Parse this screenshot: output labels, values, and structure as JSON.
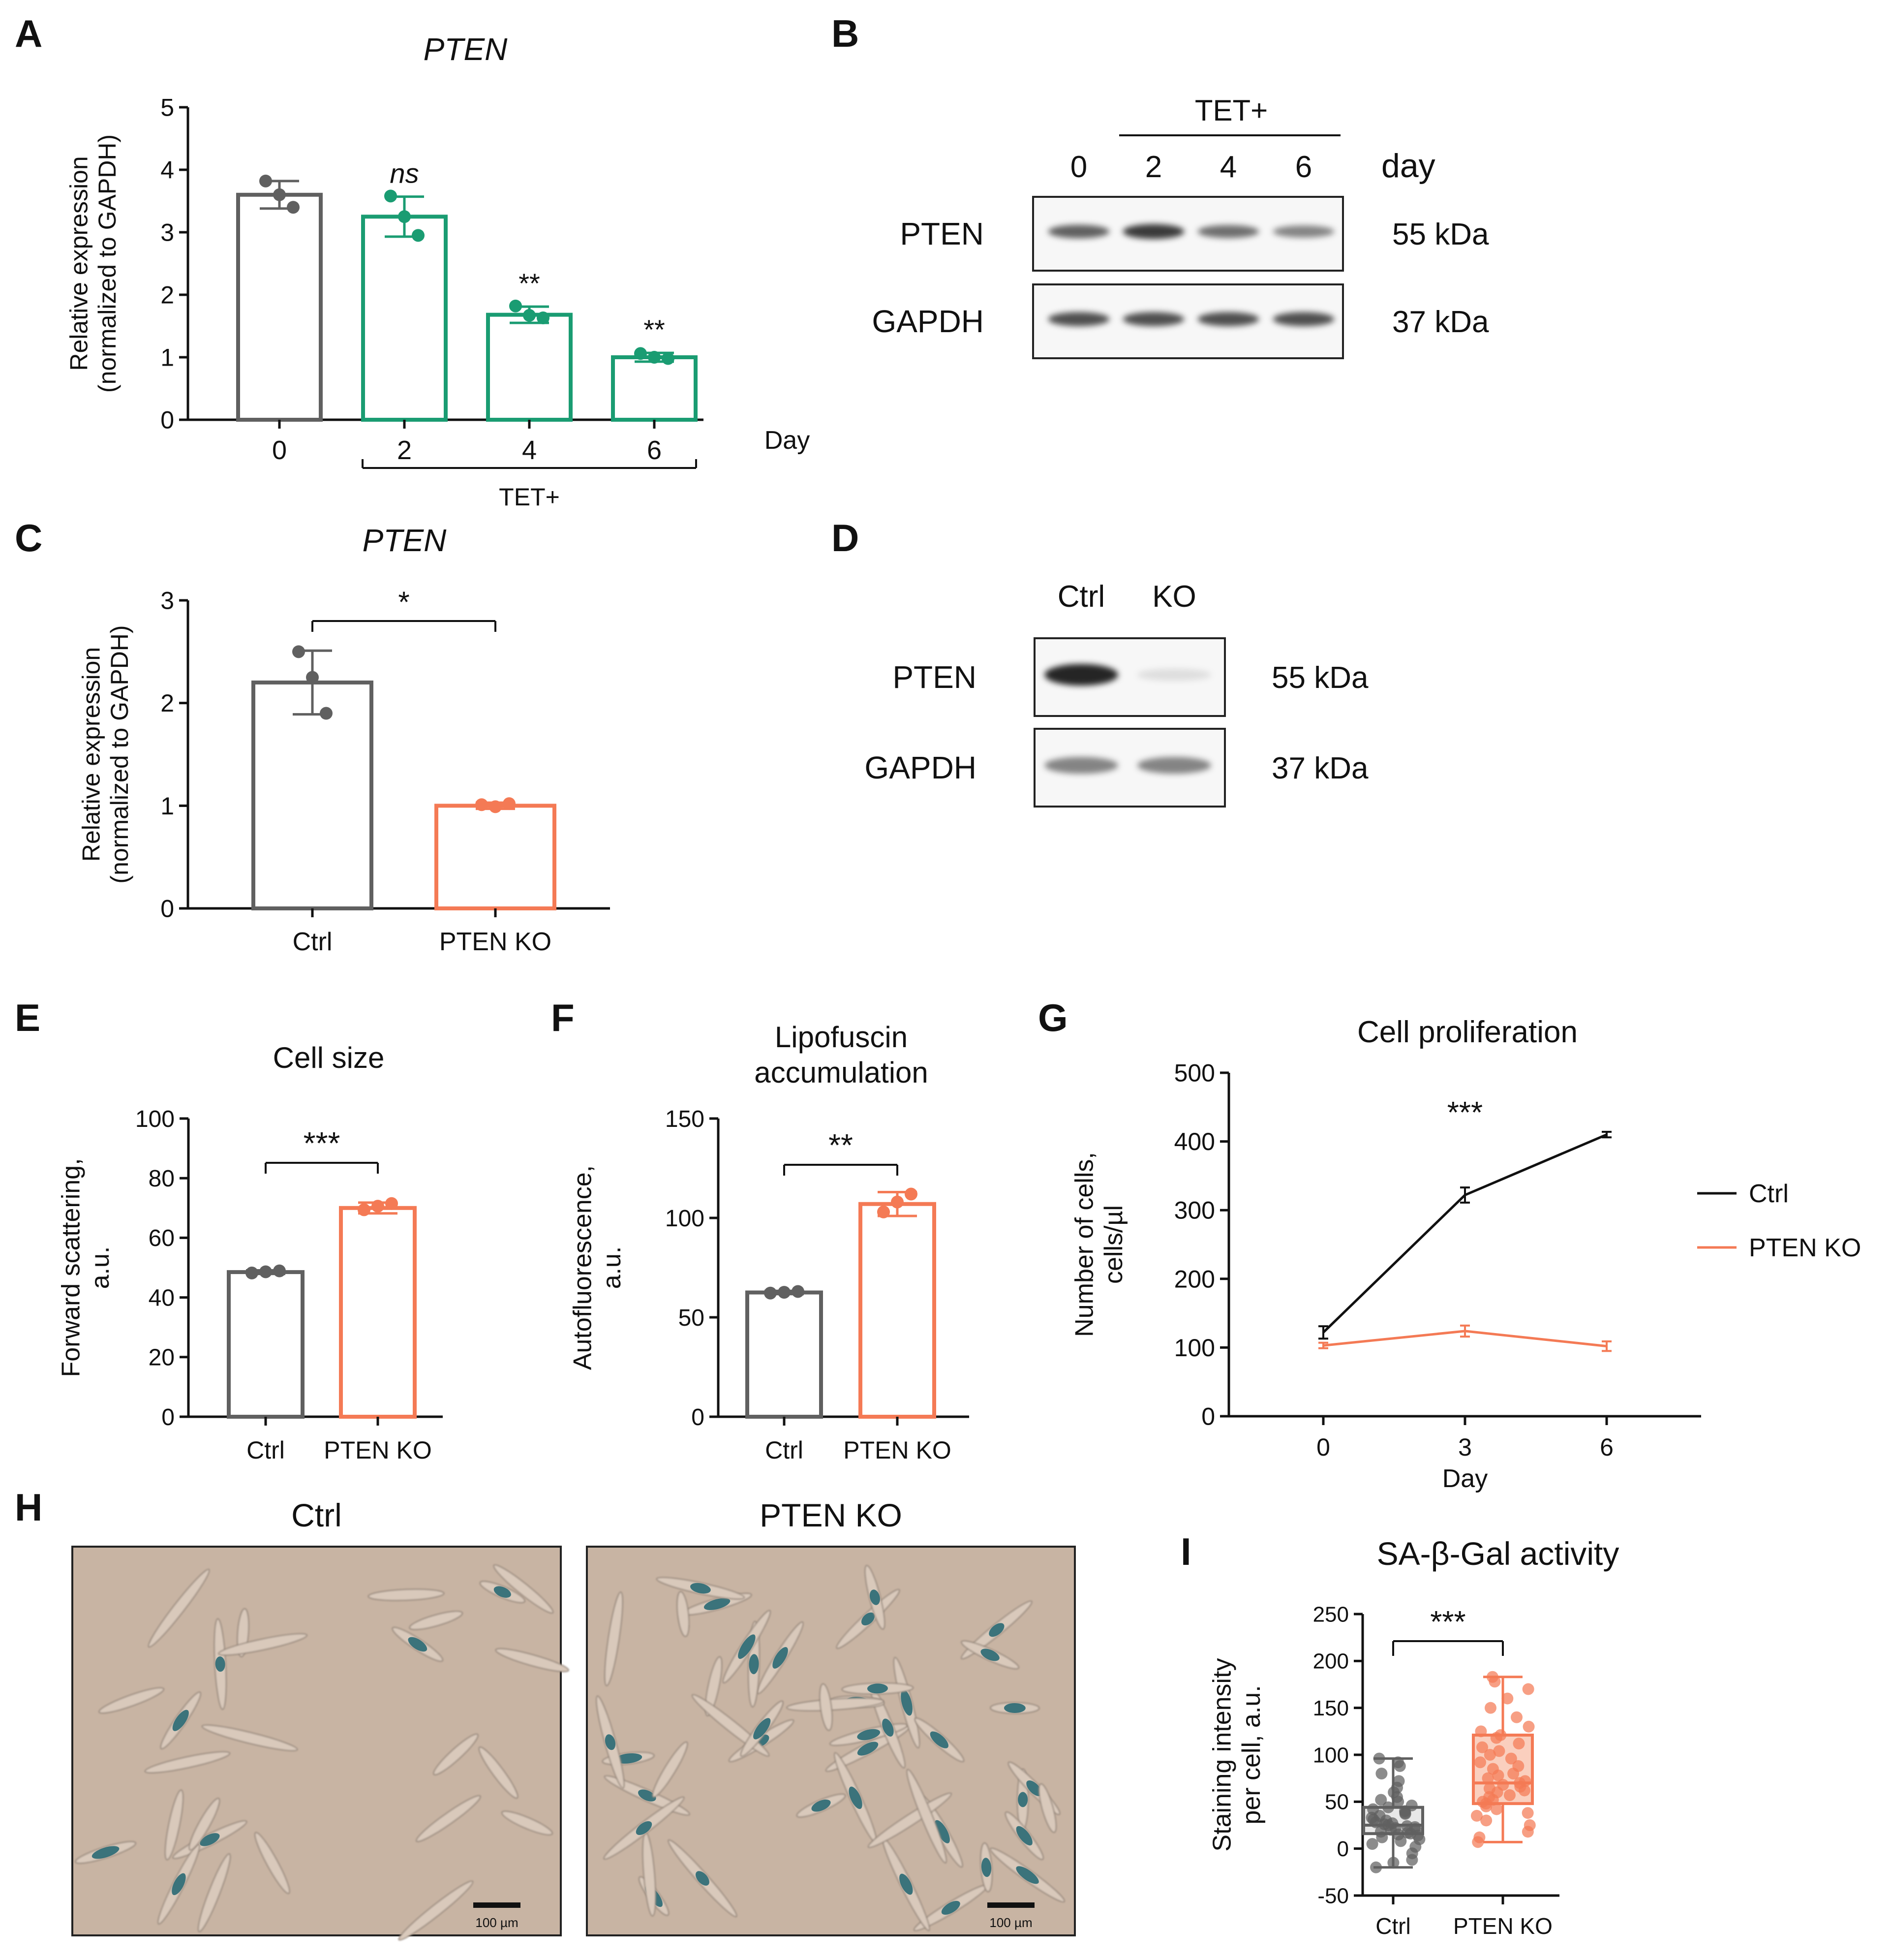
{
  "colors": {
    "ctrl": "#606060",
    "tet": "#1a9c72",
    "ko": "#f47a55",
    "micrograph_bg": "#c8b4a3",
    "stain": "#1e6470",
    "box_fill": "#f9c7b3"
  },
  "panel_letters": [
    "A",
    "B",
    "C",
    "D",
    "E",
    "F",
    "G",
    "H",
    "I"
  ],
  "chart_data": [
    {
      "panel": "A",
      "type": "bar",
      "title": "PTEN",
      "ylabel_lines": [
        "Relative expression",
        "(normalized to GAPDH)"
      ],
      "xlabel": "Day",
      "categories": [
        "0",
        "2",
        "4",
        "6"
      ],
      "values": [
        3.6,
        3.25,
        1.68,
        1.0
      ],
      "errors": [
        0.22,
        0.32,
        0.13,
        0.07
      ],
      "points": [
        [
          3.82,
          3.6,
          3.4
        ],
        [
          3.58,
          3.25,
          2.95
        ],
        [
          1.82,
          1.67,
          1.63
        ],
        [
          1.06,
          1.0,
          0.98
        ]
      ],
      "colors": [
        "ctrl",
        "tet",
        "tet",
        "tet"
      ],
      "significance": [
        "",
        "ns",
        "**",
        "**"
      ],
      "group_bracket": {
        "label": "TET+",
        "from": 1,
        "to": 3
      },
      "ylim": [
        0,
        5
      ],
      "yticks": [
        0,
        1,
        2,
        3,
        4,
        5
      ]
    },
    {
      "panel": "C",
      "type": "bar",
      "title": "PTEN",
      "ylabel_lines": [
        "Relative expression",
        "(normalized to GAPDH)"
      ],
      "categories": [
        "Ctrl",
        "PTEN KO"
      ],
      "values": [
        2.2,
        1.0
      ],
      "errors": [
        0.31,
        0.03
      ],
      "points": [
        [
          2.5,
          2.25,
          1.9
        ],
        [
          1.01,
          0.99,
          1.02
        ]
      ],
      "colors": [
        "ctrl",
        "ko"
      ],
      "comparison": "*",
      "ylim": [
        0,
        3
      ],
      "yticks": [
        0,
        1,
        2,
        3
      ]
    },
    {
      "panel": "E",
      "type": "bar",
      "title": "Cell size",
      "ylabel_lines": [
        "Forward scattering,",
        "a.u."
      ],
      "categories": [
        "Ctrl",
        "PTEN KO"
      ],
      "values": [
        48.5,
        70
      ],
      "errors": [
        0.6,
        1.8
      ],
      "points": [
        [
          48.2,
          48.6,
          48.9
        ],
        [
          69.4,
          70.6,
          71.5
        ]
      ],
      "colors": [
        "ctrl",
        "ko"
      ],
      "comparison": "***",
      "ylim": [
        0,
        100
      ],
      "yticks": [
        0,
        20,
        40,
        60,
        80,
        100
      ]
    },
    {
      "panel": "F",
      "type": "bar",
      "title_lines": [
        "Lipofuscin",
        "accumulation"
      ],
      "ylabel_lines": [
        "Autofluorescence,",
        "a.u."
      ],
      "categories": [
        "Ctrl",
        "PTEN KO"
      ],
      "values": [
        62.5,
        107
      ],
      "errors": [
        0.8,
        6
      ],
      "points": [
        [
          62.2,
          62.6,
          63.0
        ],
        [
          103,
          108,
          112
        ]
      ],
      "colors": [
        "ctrl",
        "ko"
      ],
      "comparison": "**",
      "ylim": [
        0,
        150
      ],
      "yticks": [
        0,
        50,
        100,
        150
      ]
    },
    {
      "panel": "G",
      "type": "line",
      "title": "Cell proliferation",
      "ylabel_lines": [
        "Number of cells,",
        "cells/µl"
      ],
      "xlabel": "Day",
      "x": [
        0,
        3,
        6
      ],
      "xlim": [
        -2,
        8
      ],
      "xticks": [
        0,
        3,
        6
      ],
      "ylim": [
        0,
        500
      ],
      "yticks": [
        0,
        100,
        200,
        300,
        400,
        500
      ],
      "significance": "***",
      "legend_position": "right",
      "series": [
        {
          "name": "Ctrl",
          "values": [
            122,
            322,
            410
          ],
          "errors": [
            9,
            11,
            4
          ],
          "color": "#111111"
        },
        {
          "name": "PTEN KO",
          "values": [
            103,
            124,
            102
          ],
          "errors": [
            4,
            8,
            7
          ],
          "color": "#f47a55"
        }
      ]
    },
    {
      "panel": "I",
      "type": "box",
      "title": "SA-β-Gal activity",
      "ylabel_lines": [
        "Staining intensity",
        "per cell, a.u."
      ],
      "categories": [
        "Ctrl",
        "PTEN KO"
      ],
      "ylim": [
        -50,
        250
      ],
      "yticks": [
        -50,
        0,
        50,
        100,
        150,
        200,
        250
      ],
      "comparison": "***",
      "boxes": [
        {
          "min": -20,
          "q1": 16,
          "median": 25,
          "q3": 44,
          "max": 96,
          "color": "ctrl",
          "points": [
            -20,
            -15,
            -12,
            -5,
            2,
            5,
            8,
            10,
            12,
            14,
            15,
            16,
            17,
            18,
            20,
            21,
            22,
            23,
            24,
            25,
            26,
            27,
            28,
            30,
            31,
            33,
            35,
            37,
            38,
            40,
            42,
            44,
            46,
            50,
            52,
            55,
            60,
            65,
            72,
            80,
            88,
            92,
            96
          ]
        },
        {
          "min": 7,
          "q1": 48,
          "median": 70,
          "q3": 121,
          "max": 183,
          "color": "ko",
          "points": [
            7,
            12,
            18,
            25,
            30,
            35,
            38,
            42,
            45,
            48,
            50,
            52,
            55,
            57,
            60,
            62,
            64,
            66,
            68,
            70,
            72,
            75,
            78,
            80,
            85,
            88,
            92,
            96,
            100,
            104,
            108,
            112,
            118,
            121,
            125,
            130,
            140,
            150,
            160,
            170,
            178,
            183
          ]
        }
      ]
    }
  ],
  "western_B": {
    "group_label": "TET+",
    "lanes": [
      "0",
      "2",
      "4",
      "6"
    ],
    "unit": "day",
    "rows": [
      {
        "protein": "PTEN",
        "size": "55 kDa",
        "intensities": [
          0.72,
          0.9,
          0.65,
          0.55
        ]
      },
      {
        "protein": "GAPDH",
        "size": "37 kDa",
        "intensities": [
          0.8,
          0.8,
          0.8,
          0.8
        ]
      }
    ]
  },
  "western_D": {
    "lanes": [
      "Ctrl",
      "KO"
    ],
    "rows": [
      {
        "protein": "PTEN",
        "size": "55 kDa",
        "intensities": [
          1.0,
          0.12
        ]
      },
      {
        "protein": "GAPDH",
        "size": "37 kDa",
        "intensities": [
          0.55,
          0.55
        ]
      }
    ]
  },
  "micrographs_H": {
    "panels": [
      {
        "label": "Ctrl",
        "scale_bar": "100 µm",
        "stained_fraction": 0.2
      },
      {
        "label": "PTEN KO",
        "scale_bar": "100 µm",
        "stained_fraction": 0.75
      }
    ]
  }
}
